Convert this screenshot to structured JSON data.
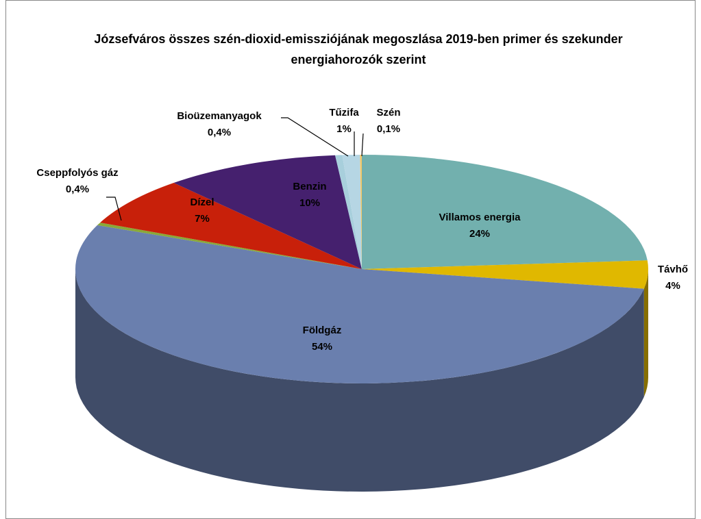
{
  "chart_data": {
    "type": "pie",
    "title": "Józsefváros összes szén-dioxid-emissziójának megoszlása 2019-ben primer és szekunder energiahorozók szerint",
    "categories": [
      "Villamos energia",
      "Távhő",
      "Földgáz",
      "Cseppfolyós gáz",
      "Dízel",
      "Benzin",
      "Bioüzemanyagok",
      "Tűzifa",
      "Szén"
    ],
    "values": [
      24,
      4,
      54,
      0.4,
      7,
      10,
      0.4,
      1,
      0.1
    ],
    "value_labels": [
      "24%",
      "4%",
      "54%",
      "0,4%",
      "7%",
      "10%",
      "0,4%",
      "1%",
      "0,1%"
    ],
    "colors": [
      "#72b0ae",
      "#e0b800",
      "#6a7fae",
      "#8aa838",
      "#c8200a",
      "#45206e",
      "#a8cfdc",
      "#b6d6e4",
      "#f5c868"
    ]
  }
}
